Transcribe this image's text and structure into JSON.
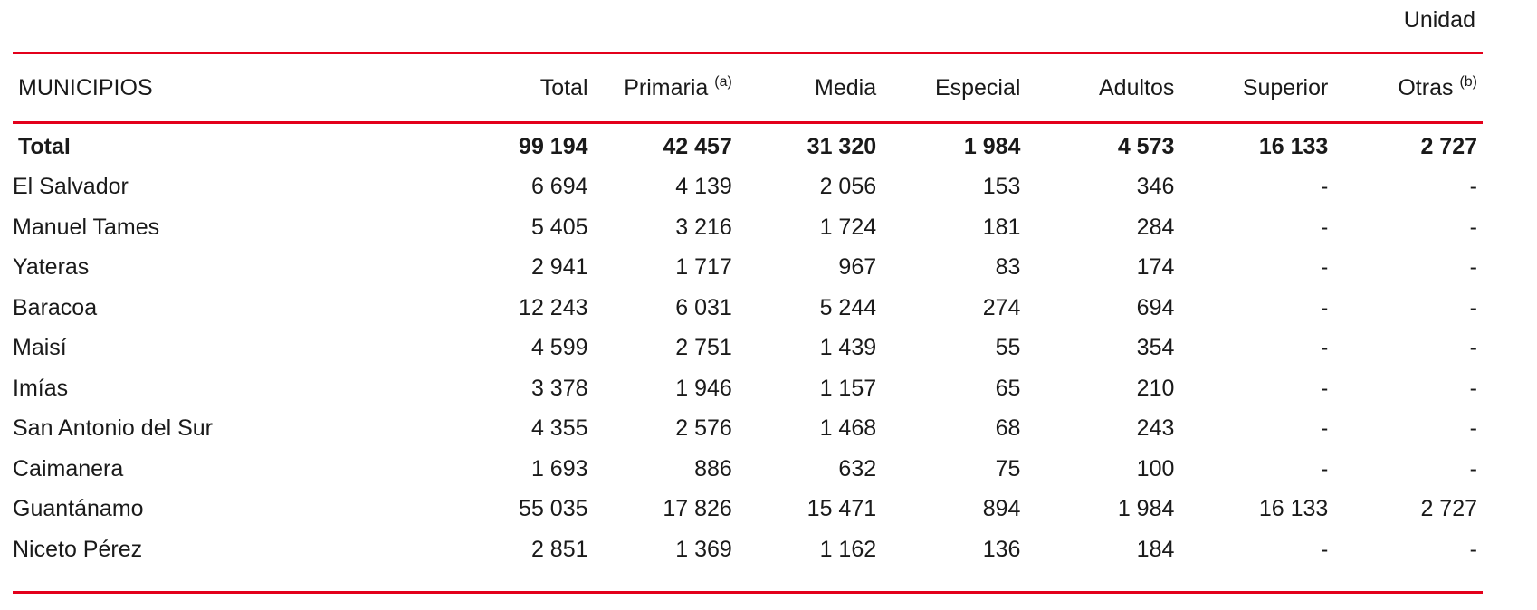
{
  "unit_label": "Unidad",
  "table": {
    "headers": {
      "municipios": "MUNICIPIOS",
      "total": "Total",
      "primaria": "Primaria",
      "primaria_note": "(a)",
      "media": "Media",
      "especial": "Especial",
      "adultos": "Adultos",
      "superior": "Superior",
      "otras": "Otras",
      "otras_note": "(b)"
    },
    "total_row": {
      "name": "Total",
      "total": "99 194",
      "primaria": "42 457",
      "media": "31 320",
      "especial": "1 984",
      "adultos": "4 573",
      "superior": "16 133",
      "otras": "2 727"
    },
    "rows": [
      {
        "name": "El Salvador",
        "total": "6 694",
        "primaria": "4 139",
        "media": "2 056",
        "especial": "153",
        "adultos": "346",
        "superior": "-",
        "otras": "-"
      },
      {
        "name": "Manuel Tames",
        "total": "5 405",
        "primaria": "3 216",
        "media": "1 724",
        "especial": "181",
        "adultos": "284",
        "superior": "-",
        "otras": "-"
      },
      {
        "name": "Yateras",
        "total": "2 941",
        "primaria": "1 717",
        "media": "967",
        "especial": "83",
        "adultos": "174",
        "superior": "-",
        "otras": "-"
      },
      {
        "name": "Baracoa",
        "total": "12 243",
        "primaria": "6 031",
        "media": "5 244",
        "especial": "274",
        "adultos": "694",
        "superior": "-",
        "otras": "-"
      },
      {
        "name": "Maisí",
        "total": "4 599",
        "primaria": "2 751",
        "media": "1 439",
        "especial": "55",
        "adultos": "354",
        "superior": "-",
        "otras": "-"
      },
      {
        "name": "Imías",
        "total": "3 378",
        "primaria": "1 946",
        "media": "1 157",
        "especial": "65",
        "adultos": "210",
        "superior": "-",
        "otras": "-"
      },
      {
        "name": "San Antonio del Sur",
        "total": "4 355",
        "primaria": "2 576",
        "media": "1 468",
        "especial": "68",
        "adultos": "243",
        "superior": "-",
        "otras": "-"
      },
      {
        "name": "Caimanera",
        "total": "1 693",
        "primaria": "886",
        "media": "632",
        "especial": "75",
        "adultos": "100",
        "superior": "-",
        "otras": "-"
      },
      {
        "name": "Guantánamo",
        "total": "55 035",
        "primaria": "17 826",
        "media": "15 471",
        "especial": "894",
        "adultos": "1 984",
        "superior": "16 133",
        "otras": "2 727"
      },
      {
        "name": "Niceto Pérez",
        "total": "2 851",
        "primaria": "1 369",
        "media": "1 162",
        "especial": "136",
        "adultos": "184",
        "superior": "-",
        "otras": "-"
      }
    ]
  },
  "colors": {
    "rule": "#e3001b",
    "text": "#1a1a1a"
  }
}
